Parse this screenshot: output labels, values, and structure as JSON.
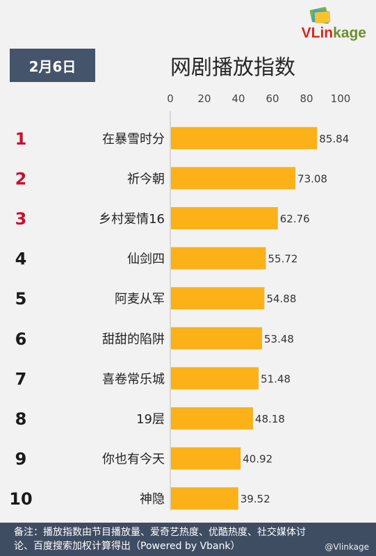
{
  "brand": {
    "name_v": "V",
    "name_rest": "Lin",
    "name_k": "kage",
    "accent": "#d9261c"
  },
  "date": "2月6日",
  "title": "网剧播放指数",
  "footer": {
    "line1": "备注：播放指数由节目播放量、爱奇艺热度、优酷热度、社交媒体讨",
    "line2": "论、百度搜索加权计算得出（Powered by Vbank）"
  },
  "watermark": "@Vlinkage",
  "colors": {
    "bar": "#fbb117",
    "top_rank": "#c8102e",
    "rank": "#1a1a1a",
    "badge": "#44546a",
    "footer": "#3f4d63"
  },
  "chart_data": {
    "type": "bar",
    "orientation": "horizontal",
    "title": "网剧播放指数",
    "xlim": [
      0,
      100
    ],
    "xticks": [
      "0",
      "20",
      "40",
      "60",
      "80",
      "100"
    ],
    "ranks": [
      "1",
      "2",
      "3",
      "4",
      "5",
      "6",
      "7",
      "8",
      "9",
      "10"
    ],
    "categories": [
      "在暴雪时分",
      "祈今朝",
      "乡村爱情16",
      "仙剑四",
      "阿麦从军",
      "甜甜的陷阱",
      "喜卷常乐城",
      "19层",
      "你也有今天",
      "神隐"
    ],
    "values": [
      85.84,
      73.08,
      62.76,
      55.72,
      54.88,
      53.48,
      51.48,
      48.18,
      40.92,
      39.52
    ],
    "value_labels": [
      "85.84",
      "73.08",
      "62.76",
      "55.72",
      "54.88",
      "53.48",
      "51.48",
      "48.18",
      "40.92",
      "39.52"
    ]
  }
}
